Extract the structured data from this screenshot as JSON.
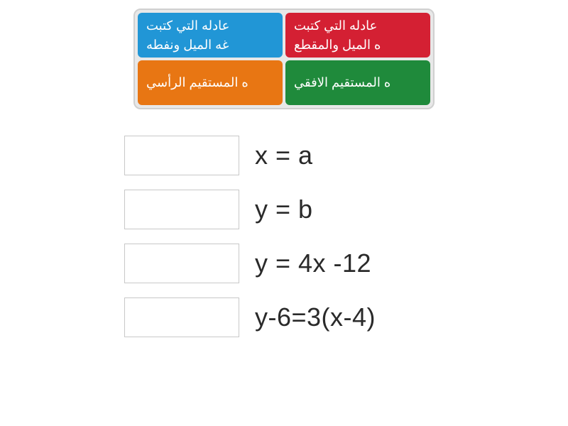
{
  "tiles": {
    "top_left": {
      "line1": "عادله التي كتبت",
      "line2": "غه الميل ونفطه",
      "bg": "#2196d6"
    },
    "top_right": {
      "line1": "عادله التي كتبت",
      "line2": "ه الميل والمقطع",
      "bg": "#d42033"
    },
    "bottom_left": {
      "line1": "ه المستقيم الرأسي",
      "bg": "#e87613"
    },
    "bottom_right": {
      "line1": "ه المستقيم الافقي",
      "bg": "#1f8a3b"
    }
  },
  "answers": [
    {
      "equation": "x = a"
    },
    {
      "equation": "y = b"
    },
    {
      "equation": "y = 4x -12"
    },
    {
      "equation": "y-6=3(x-4)"
    }
  ],
  "style": {
    "container_border": "#d0d0d0",
    "container_bg": "#e8e8e8",
    "dropzone_border": "#c8c8c8",
    "text_color": "#2a2a2a",
    "tile_text_color": "#ffffff",
    "tile_fontsize": 18,
    "equation_fontsize": 36
  }
}
